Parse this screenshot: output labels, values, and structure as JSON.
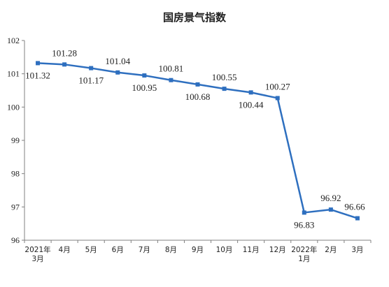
{
  "chart_data": {
    "type": "line",
    "title": "国房景气指数",
    "xlabel": "",
    "ylabel": "",
    "categories": [
      "2021年\n3月",
      "4月",
      "5月",
      "6月",
      "7月",
      "8月",
      "9月",
      "10月",
      "11月",
      "12月",
      "2022年\n1月",
      "2月",
      "3月"
    ],
    "series": [
      {
        "values": [
          101.32,
          101.28,
          101.17,
          101.04,
          100.95,
          100.81,
          100.68,
          100.55,
          100.44,
          100.27,
          96.83,
          96.92,
          96.66
        ]
      }
    ],
    "data_labels": [
      "101.32",
      "101.28",
      "101.17",
      "101.04",
      "100.95",
      "100.81",
      "100.68",
      "100.55",
      "100.44",
      "100.27",
      "96.83",
      "96.92",
      "96.66"
    ],
    "ylim": [
      96,
      102
    ],
    "yticks": [
      "96",
      "97",
      "98",
      "99",
      "100",
      "101",
      "102"
    ],
    "grid": false,
    "legend": "none",
    "colors": {
      "line": "#2e6fbf",
      "axis": "#808080",
      "text": "#222222"
    }
  }
}
